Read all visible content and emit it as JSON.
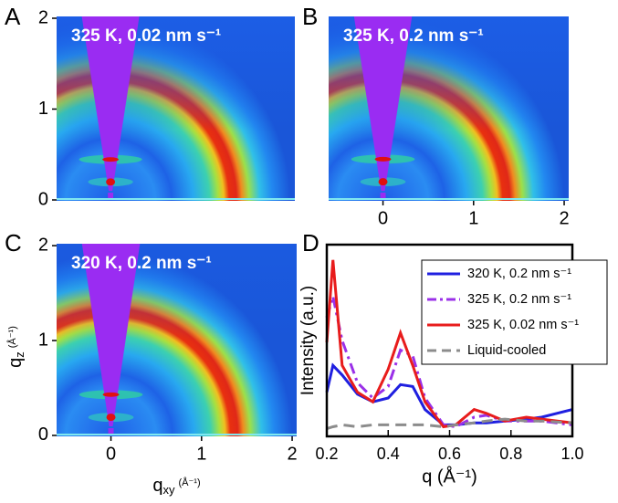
{
  "chart_data": [
    {
      "type": "heatmap",
      "panel": "A",
      "annotation": "325 K, 0.02 nm s⁻¹",
      "xlim": [
        -0.6,
        2.05
      ],
      "ylim": [
        -0.01,
        2.02
      ],
      "yticks": [
        0,
        1,
        2
      ]
    },
    {
      "type": "heatmap",
      "panel": "B",
      "annotation": "325 K, 0.2 nm s⁻¹",
      "xlim": [
        -0.6,
        2.05
      ],
      "ylim": [
        -0.01,
        2.02
      ],
      "xticks": [
        0,
        1,
        2
      ]
    },
    {
      "type": "heatmap",
      "panel": "C",
      "annotation": "320 K, 0.2 nm s⁻¹",
      "xlim": [
        -0.6,
        2.05
      ],
      "ylim": [
        -0.01,
        2.02
      ],
      "xticks": [
        0,
        1,
        2
      ],
      "yticks": [
        0,
        1,
        2
      ],
      "xlabel": {
        "main": "q",
        "sub": "xy",
        "unit": "(Å⁻¹)"
      },
      "ylabel": {
        "main": "q",
        "sub": "z",
        "unit": "(Å⁻¹)"
      }
    },
    {
      "type": "line",
      "panel": "D",
      "xlabel": "q (Å⁻¹)",
      "ylabel": "Intensity (a.u.)",
      "xlim": [
        0.2,
        1.0
      ],
      "ylim": [
        0,
        1
      ],
      "xticks": [
        0.2,
        0.4,
        0.6,
        0.8,
        {
          "value": 1.0,
          "label": "1.0"
        }
      ],
      "legend": "upper right",
      "x": [
        0.2,
        0.22,
        0.25,
        0.3,
        0.35,
        0.4,
        0.44,
        0.48,
        0.52,
        0.58,
        0.62,
        0.68,
        0.72,
        0.78,
        0.85,
        0.9,
        1.0
      ],
      "series": [
        {
          "name": "320 K,  0.2  nm s⁻¹",
          "color": "#1f1fe0",
          "dash": "solid",
          "values": [
            0.23,
            0.37,
            0.32,
            0.22,
            0.18,
            0.2,
            0.27,
            0.26,
            0.14,
            0.06,
            0.06,
            0.07,
            0.07,
            0.08,
            0.09,
            0.1,
            0.14
          ]
        },
        {
          "name": "325 K,  0.2  nm s⁻¹",
          "color": "#9a30e8",
          "dash": "dashdot",
          "values": [
            0.62,
            0.73,
            0.5,
            0.28,
            0.2,
            0.26,
            0.45,
            0.42,
            0.2,
            0.06,
            0.05,
            0.1,
            0.11,
            0.08,
            0.08,
            0.08,
            0.06
          ]
        },
        {
          "name": "325 K, 0.02 nm s⁻¹",
          "color": "#e81c1c",
          "dash": "solid",
          "values": [
            0.49,
            0.92,
            0.37,
            0.23,
            0.18,
            0.35,
            0.54,
            0.37,
            0.18,
            0.05,
            0.06,
            0.14,
            0.12,
            0.08,
            0.1,
            0.09,
            0.07
          ]
        },
        {
          "name": "Liquid-cooled",
          "color": "#8c8c8c",
          "dash": "dash",
          "values": [
            0.04,
            0.05,
            0.06,
            0.05,
            0.06,
            0.06,
            0.06,
            0.06,
            0.06,
            0.05,
            0.06,
            0.07,
            0.08,
            0.09,
            0.08,
            0.08,
            0.07
          ]
        }
      ]
    }
  ]
}
